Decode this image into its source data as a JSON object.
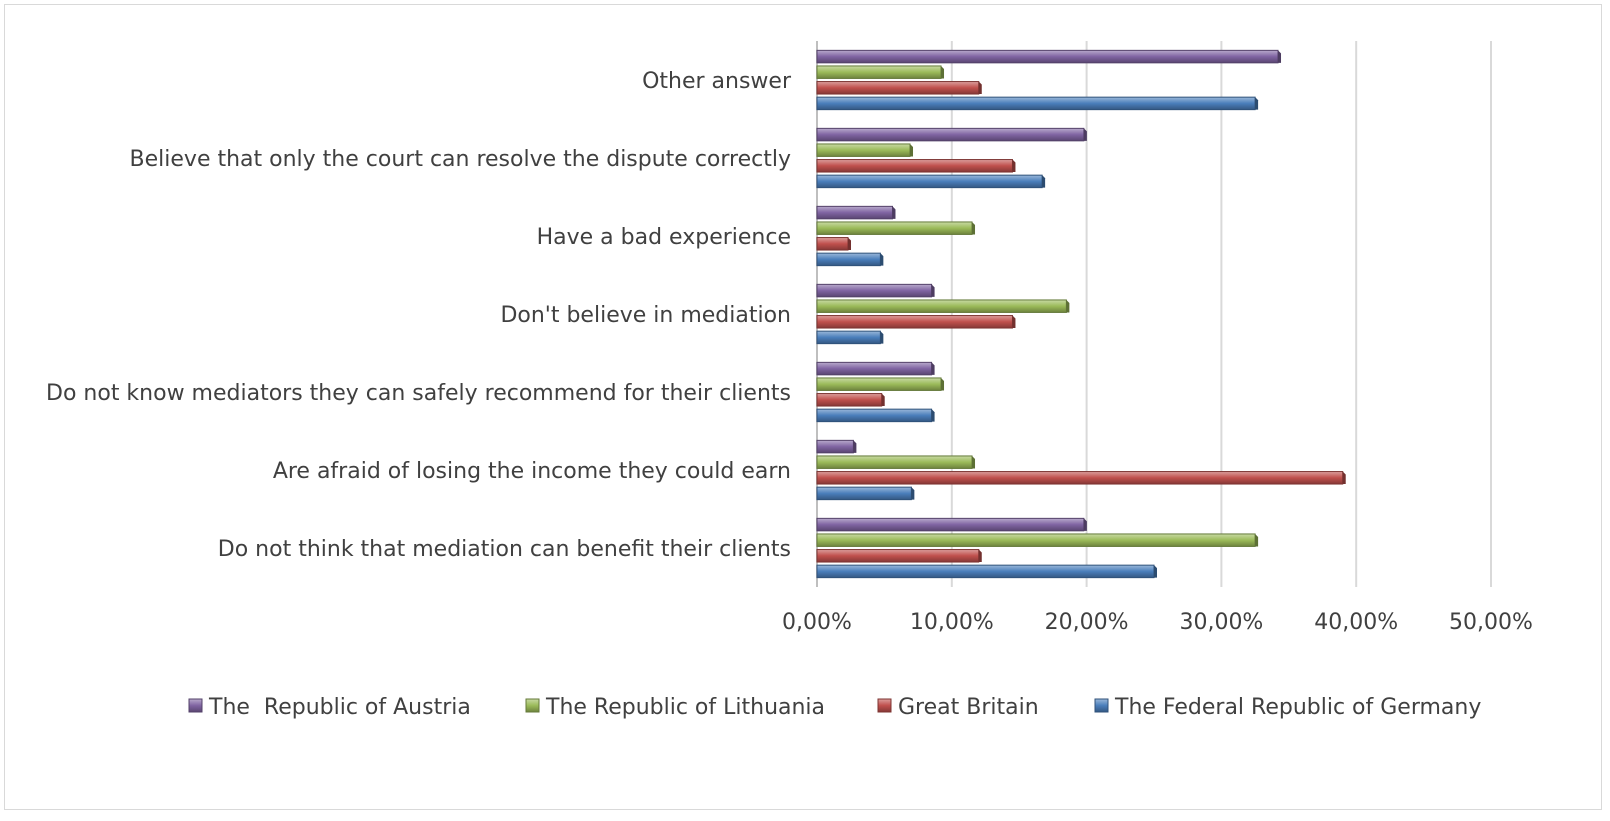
{
  "chart_data": {
    "type": "bar",
    "orientation": "horizontal",
    "title": "",
    "xlabel": "",
    "ylabel": "",
    "categories": [
      "Do not think that mediation can benefit their clients",
      "Are afraid of losing the income they could earn",
      "Do not know mediators they can safely recommend for their clients",
      "Don't believe in mediation",
      "Have a bad experience",
      "Believe that only the court can resolve the dispute correctly",
      "Other answer"
    ],
    "series": [
      {
        "name": "The Federal Republic of Germany",
        "color": "#4a7ebb",
        "values": [
          25.0,
          7.0,
          8.5,
          4.7,
          4.7,
          16.7,
          32.5
        ]
      },
      {
        "name": "Great Britain",
        "color": "#c0504d",
        "values": [
          12.0,
          39.0,
          4.8,
          14.5,
          2.3,
          14.5,
          12.0
        ]
      },
      {
        "name": "The Republic of Lithuania",
        "color": "#9bbb59",
        "values": [
          32.5,
          11.5,
          9.2,
          18.5,
          11.5,
          6.9,
          9.2
        ]
      },
      {
        "name": "The  Republic of Austria",
        "color": "#8064a2",
        "values": [
          19.8,
          2.7,
          8.5,
          8.5,
          5.6,
          19.8,
          34.2
        ]
      }
    ],
    "xticks": [
      "0,00%",
      "10,00%",
      "20,00%",
      "30,00%",
      "40,00%",
      "50,00%"
    ],
    "xlim": [
      0,
      50
    ],
    "grid": true,
    "legend_position": "bottom",
    "legend_order": [
      3,
      2,
      1,
      0
    ]
  }
}
